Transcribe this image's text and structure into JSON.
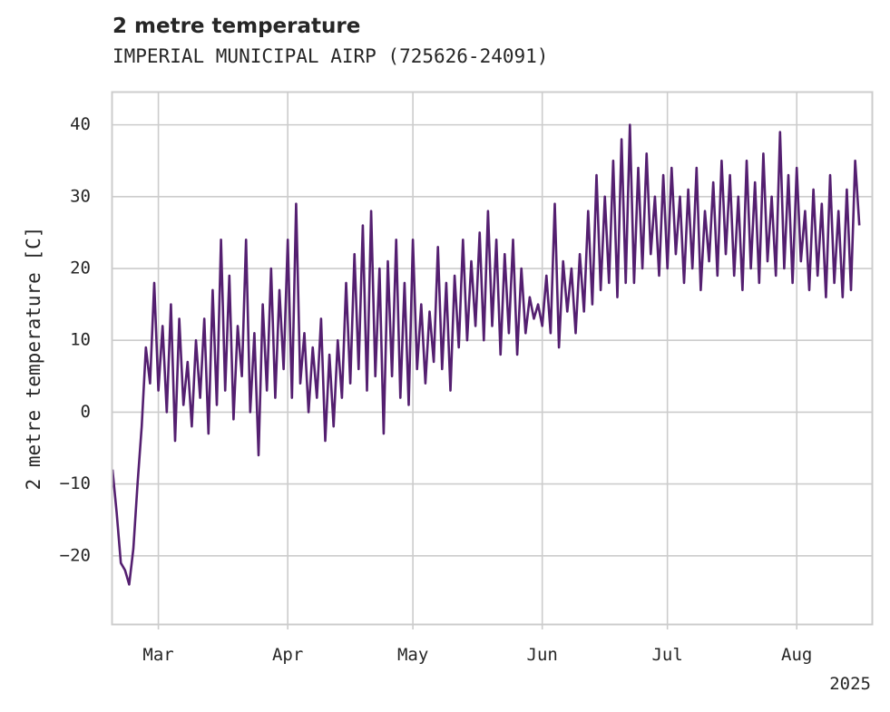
{
  "chart_data": {
    "type": "line",
    "title": "2 metre temperature",
    "subtitle": "IMPERIAL MUNICIPAL AIRP (725626-24091)",
    "ylabel": "2 metre temperature [C]",
    "xlabel": "",
    "year_label": "2025",
    "x_ticks": [
      {
        "date": "2025-03-01",
        "label": "Mar"
      },
      {
        "date": "2025-04-01",
        "label": "Apr"
      },
      {
        "date": "2025-05-01",
        "label": "May"
      },
      {
        "date": "2025-06-01",
        "label": "Jun"
      },
      {
        "date": "2025-07-01",
        "label": "Jul"
      },
      {
        "date": "2025-08-01",
        "label": "Aug"
      }
    ],
    "y_ticks": [
      -20,
      -10,
      0,
      10,
      20,
      30,
      40
    ],
    "xlim": [
      "2025-02-18",
      "2025-08-19"
    ],
    "ylim": [
      -29.5,
      44.5
    ],
    "grid": true,
    "line_color": "#541f70",
    "series": [
      {
        "values": [
          [
            "2025-02-18",
            -8
          ],
          [
            "2025-02-19",
            -14
          ],
          [
            "2025-02-20",
            -21
          ],
          [
            "2025-02-21",
            -22
          ],
          [
            "2025-02-22",
            -24
          ],
          [
            "2025-02-23",
            -19
          ],
          [
            "2025-02-24",
            -10
          ],
          [
            "2025-02-25",
            -2
          ],
          [
            "2025-02-26",
            9
          ],
          [
            "2025-02-27",
            4
          ],
          [
            "2025-02-28",
            18
          ],
          [
            "2025-03-01",
            3
          ],
          [
            "2025-03-02",
            12
          ],
          [
            "2025-03-03",
            0
          ],
          [
            "2025-03-04",
            15
          ],
          [
            "2025-03-05",
            -4
          ],
          [
            "2025-03-06",
            13
          ],
          [
            "2025-03-07",
            1
          ],
          [
            "2025-03-08",
            7
          ],
          [
            "2025-03-09",
            -2
          ],
          [
            "2025-03-10",
            10
          ],
          [
            "2025-03-11",
            2
          ],
          [
            "2025-03-12",
            13
          ],
          [
            "2025-03-13",
            -3
          ],
          [
            "2025-03-14",
            17
          ],
          [
            "2025-03-15",
            1
          ],
          [
            "2025-03-16",
            24
          ],
          [
            "2025-03-17",
            3
          ],
          [
            "2025-03-18",
            19
          ],
          [
            "2025-03-19",
            -1
          ],
          [
            "2025-03-20",
            12
          ],
          [
            "2025-03-21",
            5
          ],
          [
            "2025-03-22",
            24
          ],
          [
            "2025-03-23",
            0
          ],
          [
            "2025-03-24",
            11
          ],
          [
            "2025-03-25",
            -6
          ],
          [
            "2025-03-26",
            15
          ],
          [
            "2025-03-27",
            3
          ],
          [
            "2025-03-28",
            20
          ],
          [
            "2025-03-29",
            2
          ],
          [
            "2025-03-30",
            17
          ],
          [
            "2025-03-31",
            6
          ],
          [
            "2025-04-01",
            24
          ],
          [
            "2025-04-02",
            2
          ],
          [
            "2025-04-03",
            29
          ],
          [
            "2025-04-04",
            4
          ],
          [
            "2025-04-05",
            11
          ],
          [
            "2025-04-06",
            0
          ],
          [
            "2025-04-07",
            9
          ],
          [
            "2025-04-08",
            2
          ],
          [
            "2025-04-09",
            13
          ],
          [
            "2025-04-10",
            -4
          ],
          [
            "2025-04-11",
            8
          ],
          [
            "2025-04-12",
            -2
          ],
          [
            "2025-04-13",
            10
          ],
          [
            "2025-04-14",
            2
          ],
          [
            "2025-04-15",
            18
          ],
          [
            "2025-04-16",
            4
          ],
          [
            "2025-04-17",
            22
          ],
          [
            "2025-04-18",
            6
          ],
          [
            "2025-04-19",
            26
          ],
          [
            "2025-04-20",
            3
          ],
          [
            "2025-04-21",
            28
          ],
          [
            "2025-04-22",
            5
          ],
          [
            "2025-04-23",
            20
          ],
          [
            "2025-04-24",
            -3
          ],
          [
            "2025-04-25",
            21
          ],
          [
            "2025-04-26",
            5
          ],
          [
            "2025-04-27",
            24
          ],
          [
            "2025-04-28",
            2
          ],
          [
            "2025-04-29",
            18
          ],
          [
            "2025-04-30",
            1
          ],
          [
            "2025-05-01",
            24
          ],
          [
            "2025-05-02",
            6
          ],
          [
            "2025-05-03",
            15
          ],
          [
            "2025-05-04",
            4
          ],
          [
            "2025-05-05",
            14
          ],
          [
            "2025-05-06",
            7
          ],
          [
            "2025-05-07",
            23
          ],
          [
            "2025-05-08",
            6
          ],
          [
            "2025-05-09",
            18
          ],
          [
            "2025-05-10",
            3
          ],
          [
            "2025-05-11",
            19
          ],
          [
            "2025-05-12",
            9
          ],
          [
            "2025-05-13",
            24
          ],
          [
            "2025-05-14",
            10
          ],
          [
            "2025-05-15",
            21
          ],
          [
            "2025-05-16",
            12
          ],
          [
            "2025-05-17",
            25
          ],
          [
            "2025-05-18",
            10
          ],
          [
            "2025-05-19",
            28
          ],
          [
            "2025-05-20",
            12
          ],
          [
            "2025-05-21",
            24
          ],
          [
            "2025-05-22",
            8
          ],
          [
            "2025-05-23",
            22
          ],
          [
            "2025-05-24",
            11
          ],
          [
            "2025-05-25",
            24
          ],
          [
            "2025-05-26",
            8
          ],
          [
            "2025-05-27",
            20
          ],
          [
            "2025-05-28",
            11
          ],
          [
            "2025-05-29",
            16
          ],
          [
            "2025-05-30",
            13
          ],
          [
            "2025-05-31",
            15
          ],
          [
            "2025-06-01",
            12
          ],
          [
            "2025-06-02",
            19
          ],
          [
            "2025-06-03",
            11
          ],
          [
            "2025-06-04",
            29
          ],
          [
            "2025-06-05",
            9
          ],
          [
            "2025-06-06",
            21
          ],
          [
            "2025-06-07",
            14
          ],
          [
            "2025-06-08",
            20
          ],
          [
            "2025-06-09",
            11
          ],
          [
            "2025-06-10",
            22
          ],
          [
            "2025-06-11",
            14
          ],
          [
            "2025-06-12",
            28
          ],
          [
            "2025-06-13",
            15
          ],
          [
            "2025-06-14",
            33
          ],
          [
            "2025-06-15",
            17
          ],
          [
            "2025-06-16",
            30
          ],
          [
            "2025-06-17",
            18
          ],
          [
            "2025-06-18",
            35
          ],
          [
            "2025-06-19",
            16
          ],
          [
            "2025-06-20",
            38
          ],
          [
            "2025-06-21",
            18
          ],
          [
            "2025-06-22",
            40
          ],
          [
            "2025-06-23",
            18
          ],
          [
            "2025-06-24",
            34
          ],
          [
            "2025-06-25",
            20
          ],
          [
            "2025-06-26",
            36
          ],
          [
            "2025-06-27",
            22
          ],
          [
            "2025-06-28",
            30
          ],
          [
            "2025-06-29",
            19
          ],
          [
            "2025-06-30",
            33
          ],
          [
            "2025-07-01",
            20
          ],
          [
            "2025-07-02",
            34
          ],
          [
            "2025-07-03",
            22
          ],
          [
            "2025-07-04",
            30
          ],
          [
            "2025-07-05",
            18
          ],
          [
            "2025-07-06",
            31
          ],
          [
            "2025-07-07",
            20
          ],
          [
            "2025-07-08",
            34
          ],
          [
            "2025-07-09",
            17
          ],
          [
            "2025-07-10",
            28
          ],
          [
            "2025-07-11",
            21
          ],
          [
            "2025-07-12",
            32
          ],
          [
            "2025-07-13",
            19
          ],
          [
            "2025-07-14",
            35
          ],
          [
            "2025-07-15",
            22
          ],
          [
            "2025-07-16",
            33
          ],
          [
            "2025-07-17",
            19
          ],
          [
            "2025-07-18",
            30
          ],
          [
            "2025-07-19",
            17
          ],
          [
            "2025-07-20",
            35
          ],
          [
            "2025-07-21",
            20
          ],
          [
            "2025-07-22",
            32
          ],
          [
            "2025-07-23",
            18
          ],
          [
            "2025-07-24",
            36
          ],
          [
            "2025-07-25",
            21
          ],
          [
            "2025-07-26",
            30
          ],
          [
            "2025-07-27",
            19
          ],
          [
            "2025-07-28",
            39
          ],
          [
            "2025-07-29",
            20
          ],
          [
            "2025-07-30",
            33
          ],
          [
            "2025-07-31",
            18
          ],
          [
            "2025-08-01",
            34
          ],
          [
            "2025-08-02",
            21
          ],
          [
            "2025-08-03",
            28
          ],
          [
            "2025-08-04",
            17
          ],
          [
            "2025-08-05",
            31
          ],
          [
            "2025-08-06",
            19
          ],
          [
            "2025-08-07",
            29
          ],
          [
            "2025-08-08",
            16
          ],
          [
            "2025-08-09",
            33
          ],
          [
            "2025-08-10",
            18
          ],
          [
            "2025-08-11",
            28
          ],
          [
            "2025-08-12",
            16
          ],
          [
            "2025-08-13",
            31
          ],
          [
            "2025-08-14",
            17
          ],
          [
            "2025-08-15",
            35
          ],
          [
            "2025-08-16",
            26
          ]
        ]
      }
    ]
  }
}
